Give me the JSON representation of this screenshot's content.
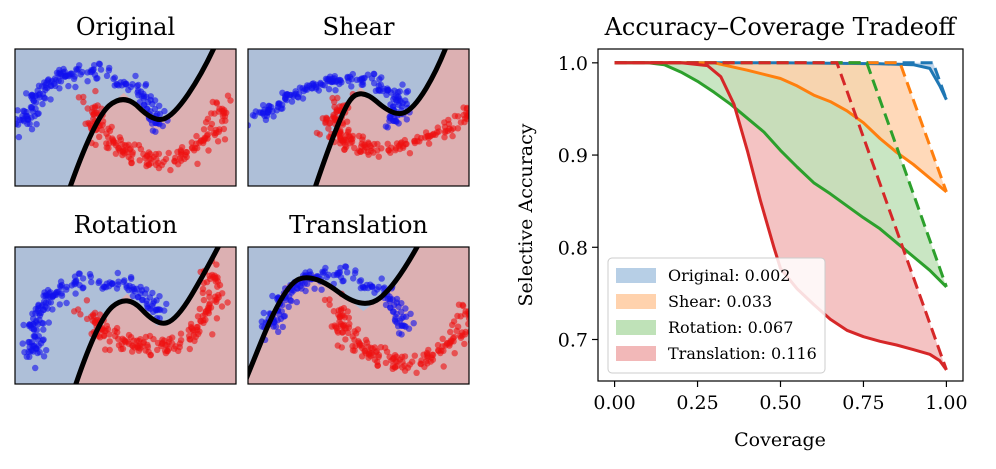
{
  "left_panels": [
    {
      "title": "Original"
    },
    {
      "title": "Shear"
    },
    {
      "title": "Rotation"
    },
    {
      "title": "Translation"
    }
  ],
  "colors": {
    "class_a": "#1010ee",
    "class_b": "#ee1010",
    "region_a": "#aebfd8",
    "region_b": "#dcb0b2",
    "boundary": "#000000"
  },
  "chart_data": {
    "type": "line",
    "title": "Accuracy–Coverage Tradeoff",
    "xlabel": "Coverage",
    "ylabel": "Selective Accuracy",
    "xlim": [
      -0.05,
      1.05
    ],
    "ylim": [
      0.655,
      1.015
    ],
    "xticks": [
      "0.00",
      "0.25",
      "0.50",
      "0.75",
      "1.00"
    ],
    "xtick_values": [
      0.0,
      0.25,
      0.5,
      0.75,
      1.0
    ],
    "yticks": [
      "0.7",
      "0.8",
      "0.9",
      "1.0"
    ],
    "ytick_values": [
      0.7,
      0.8,
      0.9,
      1.0
    ],
    "legend_position": "lower-left",
    "series": [
      {
        "name": "Original",
        "label": "Original: 0.002",
        "area": 0.002,
        "color": "#1f77b4",
        "fill": "#b7cfe6",
        "solid": [
          [
            0.0,
            1.0
          ],
          [
            0.5,
            1.0
          ],
          [
            0.8,
            0.999
          ],
          [
            0.9,
            0.998
          ],
          [
            0.95,
            0.994
          ],
          [
            0.98,
            0.975
          ],
          [
            1.0,
            0.96
          ]
        ],
        "dashed": [
          [
            0.0,
            1.0
          ],
          [
            0.96,
            1.0
          ],
          [
            1.0,
            0.96
          ]
        ]
      },
      {
        "name": "Shear",
        "label": "Shear: 0.033",
        "area": 0.033,
        "color": "#ff7f0e",
        "fill": "#ffd2ad",
        "solid": [
          [
            0.0,
            1.0
          ],
          [
            0.3,
            1.0
          ],
          [
            0.4,
            0.992
          ],
          [
            0.5,
            0.983
          ],
          [
            0.55,
            0.975
          ],
          [
            0.6,
            0.965
          ],
          [
            0.65,
            0.958
          ],
          [
            0.7,
            0.948
          ],
          [
            0.75,
            0.935
          ],
          [
            0.8,
            0.918
          ],
          [
            0.85,
            0.903
          ],
          [
            0.9,
            0.89
          ],
          [
            0.95,
            0.875
          ],
          [
            1.0,
            0.86
          ]
        ],
        "dashed": [
          [
            0.0,
            1.0
          ],
          [
            0.86,
            1.0
          ],
          [
            1.0,
            0.86
          ]
        ]
      },
      {
        "name": "Rotation",
        "label": "Rotation: 0.067",
        "area": 0.067,
        "color": "#2ca02c",
        "fill": "#bfe2b8",
        "solid": [
          [
            0.0,
            1.0
          ],
          [
            0.1,
            1.0
          ],
          [
            0.15,
            0.998
          ],
          [
            0.2,
            0.99
          ],
          [
            0.25,
            0.98
          ],
          [
            0.3,
            0.968
          ],
          [
            0.35,
            0.955
          ],
          [
            0.4,
            0.94
          ],
          [
            0.45,
            0.925
          ],
          [
            0.5,
            0.905
          ],
          [
            0.55,
            0.887
          ],
          [
            0.6,
            0.87
          ],
          [
            0.65,
            0.858
          ],
          [
            0.7,
            0.845
          ],
          [
            0.75,
            0.832
          ],
          [
            0.8,
            0.82
          ],
          [
            0.85,
            0.805
          ],
          [
            0.9,
            0.79
          ],
          [
            0.95,
            0.775
          ],
          [
            1.0,
            0.757
          ]
        ],
        "dashed": [
          [
            0.0,
            1.0
          ],
          [
            0.76,
            1.0
          ],
          [
            1.0,
            0.757
          ]
        ]
      },
      {
        "name": "Translation",
        "label": "Translation: 0.116",
        "area": 0.116,
        "color": "#d62728",
        "fill": "#f2b8b8",
        "solid": [
          [
            0.0,
            1.0
          ],
          [
            0.2,
            1.0
          ],
          [
            0.28,
            0.997
          ],
          [
            0.32,
            0.985
          ],
          [
            0.36,
            0.955
          ],
          [
            0.4,
            0.905
          ],
          [
            0.44,
            0.85
          ],
          [
            0.48,
            0.8
          ],
          [
            0.5,
            0.777
          ],
          [
            0.55,
            0.755
          ],
          [
            0.6,
            0.738
          ],
          [
            0.65,
            0.722
          ],
          [
            0.7,
            0.71
          ],
          [
            0.75,
            0.703
          ],
          [
            0.8,
            0.698
          ],
          [
            0.85,
            0.694
          ],
          [
            0.9,
            0.689
          ],
          [
            0.95,
            0.684
          ],
          [
            0.98,
            0.677
          ],
          [
            1.0,
            0.667
          ]
        ],
        "dashed": [
          [
            0.0,
            1.0
          ],
          [
            0.67,
            1.0
          ],
          [
            1.0,
            0.667
          ]
        ]
      }
    ]
  }
}
